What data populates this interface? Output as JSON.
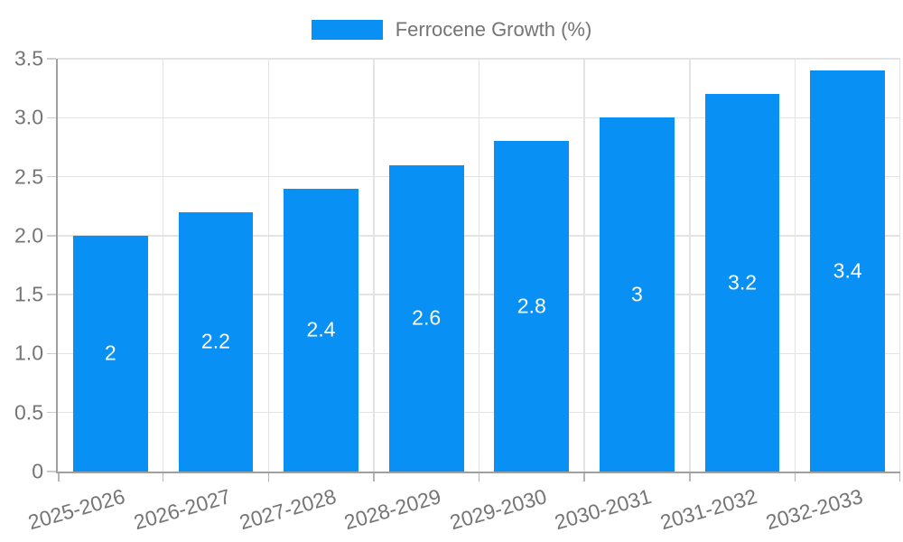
{
  "chart_data": {
    "type": "bar",
    "title": "",
    "legend_label": "Ferrocene Growth (%)",
    "legend_position": "top",
    "categories": [
      "2025-2026",
      "2026-2027",
      "2027-2028",
      "2028-2029",
      "2029-2030",
      "2030-2031",
      "2031-2032",
      "2032-2033"
    ],
    "values": [
      2,
      2.2,
      2.4,
      2.6,
      2.8,
      3,
      3.2,
      3.4
    ],
    "bar_labels": [
      "2",
      "2.2",
      "2.4",
      "2.6",
      "2.8",
      "3",
      "3.2",
      "3.4"
    ],
    "xlabel": "",
    "ylabel": "",
    "ylim": [
      0,
      3.5
    ],
    "yticks": [
      0,
      0.5,
      1,
      1.5,
      2,
      2.5,
      3,
      3.5
    ],
    "ytick_labels": [
      "0",
      "0.5",
      "1.0",
      "1.5",
      "2.0",
      "2.5",
      "3.0",
      "3.5"
    ],
    "grid": true,
    "colors": {
      "bar": "#0890F5",
      "grid": "#e3e3e3",
      "axis": "#a0a0a0",
      "tick_label": "#757575",
      "bar_label": "#ffffff"
    }
  }
}
